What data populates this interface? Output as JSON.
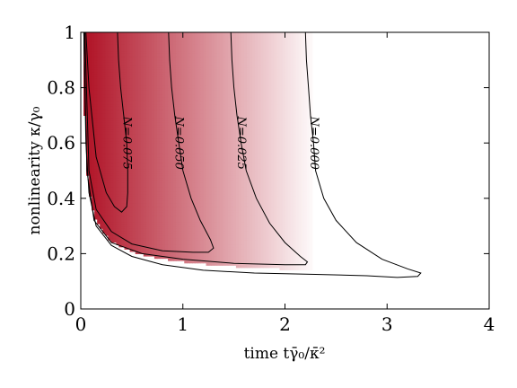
{
  "chart_data": {
    "type": "heatmap",
    "xlabel": "time tγ̄₀/κ̄²",
    "ylabel": "nonlinearity κ/γ₀",
    "xlim": [
      0,
      4
    ],
    "ylim": [
      0,
      1
    ],
    "x_ticks": [
      "0",
      "1",
      "2",
      "3",
      "4"
    ],
    "y_ticks": [
      "0",
      "0.2",
      "0.4",
      "0.6",
      "0.8",
      "1"
    ],
    "grid": false,
    "colormap": "white-to-red",
    "colors": {
      "max_red": "#b2182b",
      "white": "#ffffff",
      "contour": "#000000"
    },
    "contours": [
      {
        "label": "N=0.075",
        "points": [
          [
            0.36,
            1.0
          ],
          [
            0.37,
            0.9
          ],
          [
            0.39,
            0.8
          ],
          [
            0.42,
            0.7
          ],
          [
            0.45,
            0.6
          ],
          [
            0.46,
            0.5
          ],
          [
            0.46,
            0.42
          ],
          [
            0.45,
            0.37
          ],
          [
            0.4,
            0.35
          ],
          [
            0.33,
            0.37
          ],
          [
            0.25,
            0.42
          ],
          [
            0.15,
            0.55
          ],
          [
            0.08,
            0.8
          ],
          [
            0.05,
            1.0
          ]
        ]
      },
      {
        "label": "N=0.050",
        "points": [
          [
            0.86,
            1.0
          ],
          [
            0.87,
            0.9
          ],
          [
            0.89,
            0.8
          ],
          [
            0.92,
            0.7
          ],
          [
            0.96,
            0.6
          ],
          [
            1.0,
            0.5
          ],
          [
            1.08,
            0.4
          ],
          [
            1.17,
            0.32
          ],
          [
            1.27,
            0.25
          ],
          [
            1.3,
            0.22
          ],
          [
            1.25,
            0.205
          ],
          [
            1.1,
            0.205
          ],
          [
            0.8,
            0.21
          ],
          [
            0.5,
            0.235
          ],
          [
            0.3,
            0.28
          ],
          [
            0.15,
            0.36
          ],
          [
            0.08,
            0.5
          ],
          [
            0.04,
            1.0
          ]
        ]
      },
      {
        "label": "N=0.025",
        "points": [
          [
            1.47,
            1.0
          ],
          [
            1.48,
            0.9
          ],
          [
            1.5,
            0.8
          ],
          [
            1.53,
            0.7
          ],
          [
            1.57,
            0.6
          ],
          [
            1.62,
            0.5
          ],
          [
            1.72,
            0.4
          ],
          [
            1.85,
            0.31
          ],
          [
            2.0,
            0.24
          ],
          [
            2.15,
            0.19
          ],
          [
            2.22,
            0.17
          ],
          [
            2.2,
            0.16
          ],
          [
            2.0,
            0.16
          ],
          [
            1.5,
            0.165
          ],
          [
            1.0,
            0.18
          ],
          [
            0.6,
            0.2
          ],
          [
            0.3,
            0.24
          ],
          [
            0.13,
            0.32
          ],
          [
            0.06,
            0.5
          ],
          [
            0.03,
            1.0
          ]
        ]
      },
      {
        "label": "N=0.000",
        "points": [
          [
            2.2,
            1.0
          ],
          [
            2.21,
            0.9
          ],
          [
            2.23,
            0.8
          ],
          [
            2.25,
            0.7
          ],
          [
            2.28,
            0.6
          ],
          [
            2.3,
            0.5
          ],
          [
            2.38,
            0.4
          ],
          [
            2.5,
            0.32
          ],
          [
            2.7,
            0.24
          ],
          [
            2.95,
            0.18
          ],
          [
            3.2,
            0.145
          ],
          [
            3.33,
            0.13
          ],
          [
            3.3,
            0.118
          ],
          [
            3.1,
            0.114
          ],
          [
            2.8,
            0.12
          ],
          [
            2.3,
            0.125
          ],
          [
            1.7,
            0.13
          ],
          [
            1.2,
            0.14
          ],
          [
            0.8,
            0.16
          ],
          [
            0.5,
            0.19
          ],
          [
            0.3,
            0.23
          ],
          [
            0.15,
            0.3
          ],
          [
            0.08,
            0.42
          ],
          [
            0.05,
            0.6
          ],
          [
            0.03,
            1.0
          ]
        ]
      }
    ]
  }
}
